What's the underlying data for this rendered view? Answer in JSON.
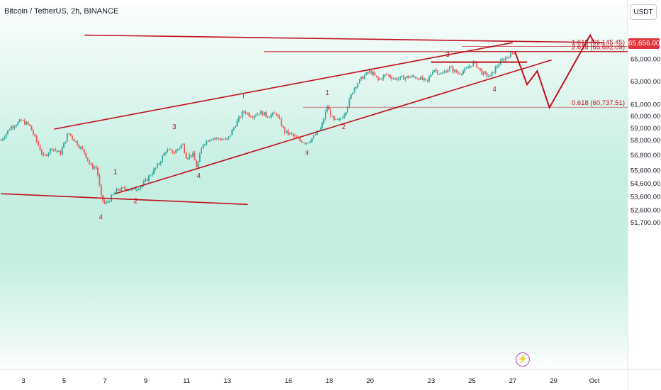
{
  "title": "Bitcoin / TetherUS, 2h, BINANCE",
  "currency_button": "USDT",
  "current_price_label": "65,656.00",
  "colors": {
    "up": "#26a69a",
    "down": "#ef5350",
    "drawing": "#c0101b",
    "price_tag": "#e0323a"
  },
  "chart_data": {
    "type": "candlestick",
    "title": "Bitcoin / TetherUS, 2h, BINANCE",
    "y_axis_scale": "log",
    "ylim": [
      51400,
      67200
    ],
    "y_ticks": [
      {
        "value": 65000,
        "label": "65,000.00"
      },
      {
        "value": 63000,
        "label": "63,000.00"
      },
      {
        "value": 61000,
        "label": "61,000.00"
      },
      {
        "value": 60000,
        "label": "60,000.00"
      },
      {
        "value": 59000,
        "label": "59,000.00"
      },
      {
        "value": 58000,
        "label": "58,000.00"
      },
      {
        "value": 56800,
        "label": "56,800.00"
      },
      {
        "value": 55600,
        "label": "55,600.00"
      },
      {
        "value": 54600,
        "label": "54,600.00"
      },
      {
        "value": 53600,
        "label": "53,600.00"
      },
      {
        "value": 52600,
        "label": "52,600.00"
      },
      {
        "value": 51700,
        "label": "51,700.00"
      }
    ],
    "x_ticks": [
      {
        "day": 3,
        "label": "3"
      },
      {
        "day": 5,
        "label": "5"
      },
      {
        "day": 7,
        "label": "7"
      },
      {
        "day": 9,
        "label": "9"
      },
      {
        "day": 11,
        "label": "11"
      },
      {
        "day": 13,
        "label": "13"
      },
      {
        "day": 16,
        "label": "16"
      },
      {
        "day": 18,
        "label": "18"
      },
      {
        "day": 20,
        "label": "20"
      },
      {
        "day": 23,
        "label": "23"
      },
      {
        "day": 25,
        "label": "25"
      },
      {
        "day": 27,
        "label": "27"
      },
      {
        "day": 29,
        "label": "29"
      },
      {
        "day": 31,
        "label": "Oct"
      }
    ],
    "price_path": [
      [
        1.9,
        58000
      ],
      [
        2.4,
        59100
      ],
      [
        2.9,
        59600
      ],
      [
        3.3,
        59200
      ],
      [
        3.7,
        57700
      ],
      [
        4.0,
        56600
      ],
      [
        4.4,
        57400
      ],
      [
        4.8,
        56900
      ],
      [
        5.2,
        58600
      ],
      [
        5.6,
        57800
      ],
      [
        6.0,
        57000
      ],
      [
        6.3,
        55900
      ],
      [
        6.6,
        55800
      ],
      [
        6.8,
        53600
      ],
      [
        7.0,
        53000
      ],
      [
        7.2,
        53300
      ],
      [
        7.6,
        54100
      ],
      [
        8.0,
        54200
      ],
      [
        8.4,
        54100
      ],
      [
        8.8,
        54400
      ],
      [
        9.2,
        55200
      ],
      [
        9.6,
        56000
      ],
      [
        10.0,
        57200
      ],
      [
        10.4,
        57000
      ],
      [
        10.8,
        57700
      ],
      [
        11.0,
        56600
      ],
      [
        11.3,
        56900
      ],
      [
        11.5,
        55800
      ],
      [
        11.8,
        57700
      ],
      [
        12.2,
        58200
      ],
      [
        12.6,
        58100
      ],
      [
        13.0,
        58000
      ],
      [
        13.4,
        59300
      ],
      [
        13.8,
        60400
      ],
      [
        14.2,
        60000
      ],
      [
        14.6,
        60300
      ],
      [
        15.0,
        60000
      ],
      [
        15.4,
        60200
      ],
      [
        15.8,
        58700
      ],
      [
        16.2,
        58400
      ],
      [
        16.5,
        58000
      ],
      [
        16.9,
        57800
      ],
      [
        17.2,
        58200
      ],
      [
        17.6,
        59000
      ],
      [
        17.9,
        60800
      ],
      [
        18.2,
        59600
      ],
      [
        18.5,
        59600
      ],
      [
        18.8,
        60400
      ],
      [
        19.2,
        62400
      ],
      [
        19.6,
        63300
      ],
      [
        20.0,
        63900
      ],
      [
        20.4,
        63100
      ],
      [
        20.8,
        63600
      ],
      [
        21.2,
        63200
      ],
      [
        21.6,
        63300
      ],
      [
        22.0,
        63400
      ],
      [
        22.4,
        63300
      ],
      [
        22.8,
        62900
      ],
      [
        23.1,
        64100
      ],
      [
        23.5,
        63600
      ],
      [
        23.9,
        64200
      ],
      [
        24.3,
        63700
      ],
      [
        24.7,
        64000
      ],
      [
        25.1,
        64700
      ],
      [
        25.5,
        63700
      ],
      [
        25.9,
        63400
      ],
      [
        26.2,
        64300
      ],
      [
        26.5,
        64900
      ],
      [
        26.8,
        65300
      ],
      [
        27.1,
        65700
      ]
    ],
    "projection_path": [
      [
        27.1,
        65700
      ],
      [
        27.7,
        62700
      ],
      [
        28.2,
        63900
      ],
      [
        28.8,
        60700
      ],
      [
        30.8,
        67200
      ]
    ],
    "trendlines": [
      {
        "name": "upper-channel",
        "points": [
          [
            4.5,
            58900
          ],
          [
            27.0,
            66500
          ]
        ]
      },
      {
        "name": "lower-channel",
        "points": [
          [
            7.5,
            53800
          ],
          [
            28.9,
            64900
          ]
        ]
      },
      {
        "name": "lower-support",
        "points": [
          [
            1.9,
            53800
          ],
          [
            14.0,
            53000
          ]
        ]
      },
      {
        "name": "top-line",
        "points": [
          [
            6.0,
            67200
          ],
          [
            31.5,
            66500
          ]
        ]
      },
      {
        "name": "resistance-box",
        "points": [
          [
            23.0,
            64700
          ],
          [
            27.7,
            64700
          ]
        ]
      }
    ],
    "fib_levels": [
      {
        "label": "1.618 (66,145.45)",
        "value": 66145.45
      },
      {
        "label": "2.618 (65,692.09)",
        "value": 65692.09
      },
      {
        "label": "0.618 (60,737.51)",
        "value": 60737.51
      }
    ],
    "current_price": 65656.0,
    "wave_labels": [
      {
        "text": "4",
        "day": 6.8,
        "price": 51900
      },
      {
        "text": "1",
        "day": 7.5,
        "price": 55300
      },
      {
        "text": "2",
        "day": 8.5,
        "price": 53100
      },
      {
        "text": "3",
        "day": 10.4,
        "price": 58900
      },
      {
        "text": "4",
        "day": 11.6,
        "price": 55000
      },
      {
        "text": "i",
        "day": 13.8,
        "price": 61500
      },
      {
        "text": "ii",
        "day": 16.9,
        "price": 56800
      },
      {
        "text": "1",
        "day": 17.9,
        "price": 61800
      },
      {
        "text": "2",
        "day": 18.7,
        "price": 58900
      },
      {
        "text": "3",
        "day": 23.8,
        "price": 65200
      },
      {
        "text": "4",
        "day": 26.1,
        "price": 62100
      }
    ]
  }
}
